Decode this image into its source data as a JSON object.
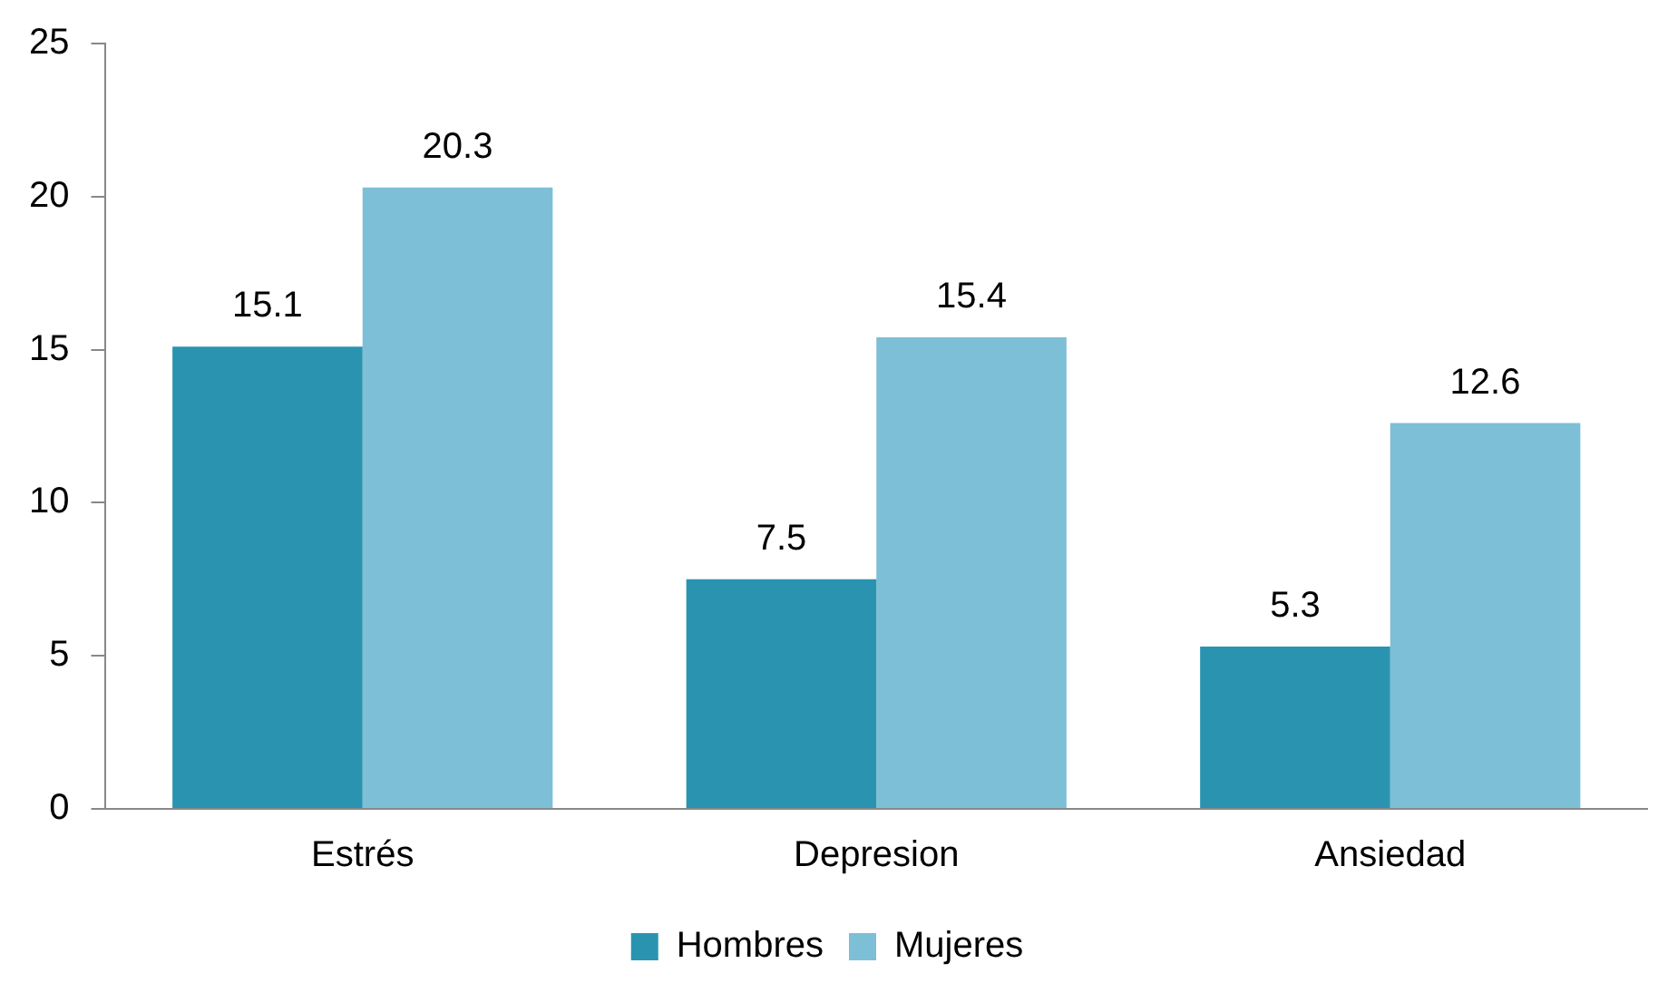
{
  "chart_data": {
    "type": "bar",
    "categories": [
      "Estrés",
      "Depresion",
      "Ansiedad"
    ],
    "series": [
      {
        "name": "Hombres",
        "color": "#2a94b0",
        "values": [
          15.1,
          7.5,
          5.3
        ]
      },
      {
        "name": "Mujeres",
        "color": "#7dbfd6",
        "values": [
          20.3,
          15.4,
          12.6
        ]
      }
    ],
    "ylim": [
      0,
      25
    ],
    "yticks": [
      0,
      5,
      10,
      15,
      20,
      25
    ],
    "grid": false,
    "legend": "bottom",
    "data_labels": true
  }
}
